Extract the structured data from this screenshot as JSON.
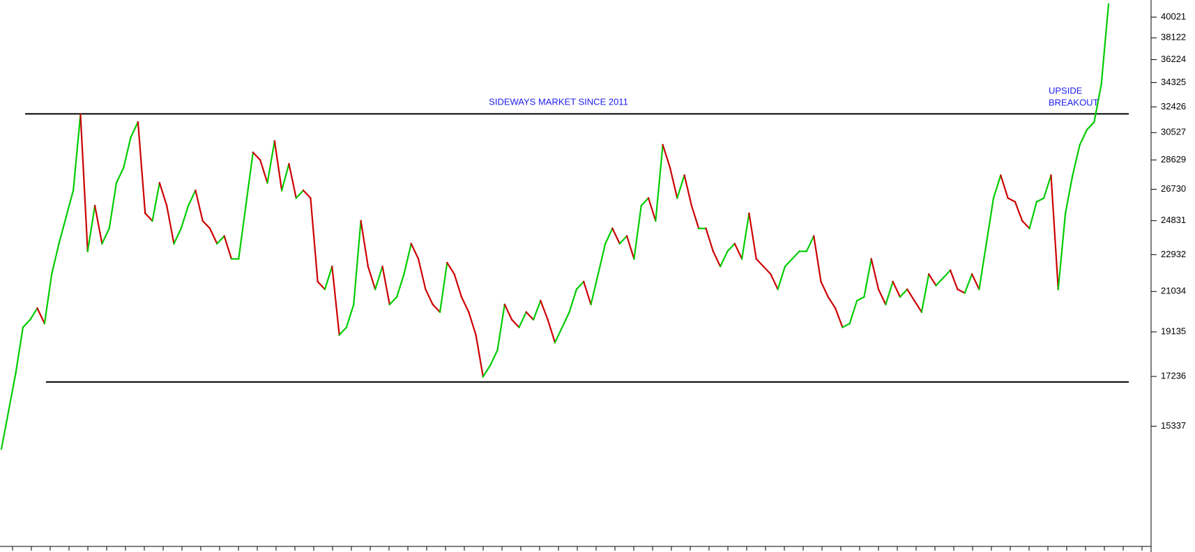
{
  "chart_data": {
    "type": "line",
    "annotations": [
      {
        "text": [
          "SIDEWAYS MARKET SINCE 2011"
        ]
      },
      {
        "text": [
          "UPSIDE",
          "BREAKOUT"
        ]
      }
    ],
    "values": [
      14540,
      15896,
      17377,
      19338,
      19690,
      20223,
      19514,
      21907,
      23528,
      25045,
      26658,
      31857,
      23112,
      25722,
      23528,
      24385,
      27134,
      28123,
      30200,
      31293,
      25265,
      24821,
      27134,
      25722,
      23528,
      24385,
      25722,
      26658,
      24821,
      24385,
      23528,
      23953,
      22704,
      22704,
      25722,
      29140,
      28627,
      27134,
      29928,
      26658,
      28371,
      26186,
      26658,
      26186,
      21523,
      21143,
      22304,
      18998,
      19338,
      20403,
      24821,
      22304,
      21143,
      22304,
      20403,
      20767,
      21907,
      23528,
      22704,
      21143,
      20403,
      20043,
      22500,
      21907,
      20767,
      20043,
      18998,
      17225,
      17689,
      18334,
      20403,
      19690,
      19338,
      20043,
      19690,
      20583,
      19690,
      18662,
      19338,
      20043,
      21143,
      21523,
      20403,
      21907,
      23528,
      24385,
      23528,
      23953,
      22704,
      25722,
      26186,
      24821,
      29664,
      28123,
      26186,
      27623,
      25722,
      24385,
      24385,
      23112,
      22304,
      23112,
      23528,
      22704,
      25265,
      22704,
      22304,
      21907,
      21143,
      22304,
      22704,
      23112,
      23112,
      23953,
      21523,
      20767,
      20223,
      19338,
      19514,
      20583,
      20767,
      22704,
      21143,
      20403,
      21523,
      20767,
      21143,
      20583,
      20043,
      21907,
      21331,
      21715,
      22104,
      21143,
      20955,
      21907,
      21143,
      23528,
      26186,
      27623,
      26186,
      25954,
      24821,
      24385,
      25954,
      26186,
      27623,
      21143,
      25265,
      27623,
      29664,
      30740,
      31293,
      34210,
      41253
    ],
    "up_color": "#00cc00",
    "down_color": "#cc0000",
    "log_scale": true,
    "ylim": [
      11570,
      41660
    ],
    "yticks": [
      40021,
      38122,
      36224,
      34325,
      32426,
      30527,
      28629,
      26730,
      24831,
      22932,
      21034,
      19135,
      17236,
      15337
    ],
    "reference_lines": [
      31900,
      17010
    ],
    "reference_line_color": "#000000",
    "annotation_color": "#2020ee"
  }
}
